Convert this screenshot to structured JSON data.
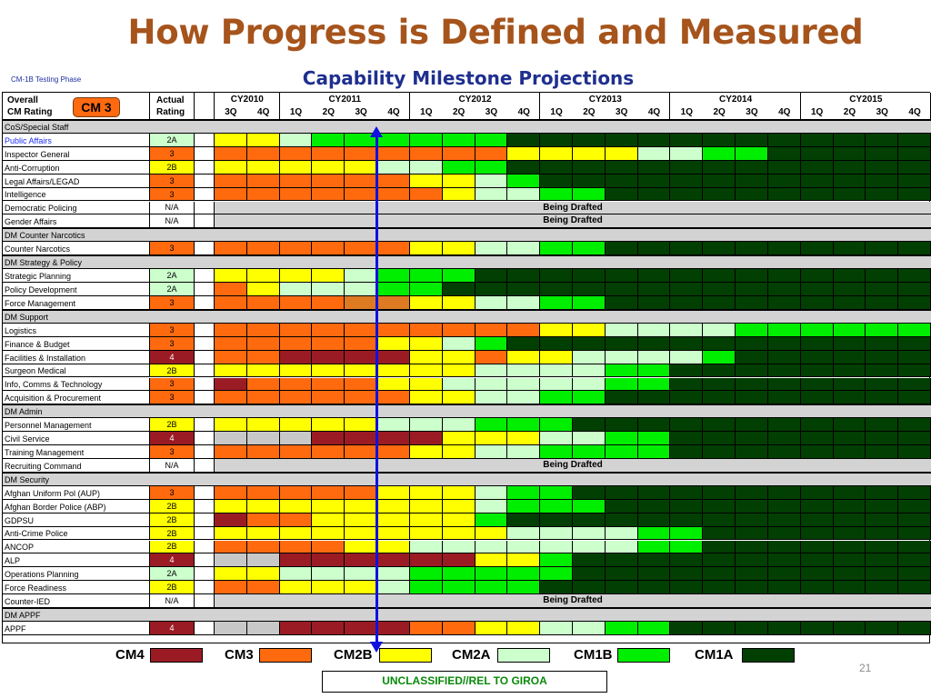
{
  "title": "How Progress is Defined and Measured",
  "subtitle": "Capability Milestone Projections",
  "phase": "CM-1B Testing Phase",
  "header": {
    "overall": "Overall",
    "cm_rating": "CM Rating",
    "actual": "Actual",
    "rating": "Rating",
    "badge": "CM 3",
    "years": [
      "CY2010",
      "CY2011",
      "CY2012",
      "CY2013",
      "CY2014",
      "CY2015"
    ],
    "quarters": [
      "3Q",
      "4Q",
      "1Q",
      "2Q",
      "3Q",
      "4Q",
      "1Q",
      "2Q",
      "3Q",
      "4Q",
      "1Q",
      "2Q",
      "3Q",
      "4Q",
      "1Q",
      "2Q",
      "3Q",
      "4Q",
      "1Q",
      "2Q",
      "3Q",
      "4Q"
    ]
  },
  "colors": {
    "R": "#9b1b24",
    "O": "#ff6a0f",
    "Y": "#ffff00",
    "L": "#ccffcc",
    "G": "#00ee00",
    "D": "#023f02",
    "X": "#c8c8c8",
    "M": "#dd7a22",
    "ratingBg": {
      "2A": "#ccffcc",
      "3": "#ff6a0f",
      "2B": "#ffff00",
      "4": "#9b1b24",
      "N/A": "#ffffff"
    },
    "ratingText": {
      "2A": "#000000",
      "3": "#000000",
      "2B": "#000000",
      "4": "#ffffff",
      "N/A": "#000000"
    }
  },
  "draft_text": "Being Drafted",
  "rows": [
    {
      "type": "section",
      "label": "CoS/Special Staff"
    },
    {
      "type": "row",
      "name": "Public Affairs",
      "rating": "2A",
      "cells": "YYLGGGGGGDDDDDDDDDDDDD",
      "blue": true
    },
    {
      "type": "row",
      "name": "Inspector General",
      "rating": "3",
      "cells": "OOOOOOOOOYYYYLLGGDDDDD"
    },
    {
      "type": "row",
      "name": "Anti-Corruption",
      "rating": "2B",
      "cells": "YYYYYLLGGDDDDDDDDDDDDD"
    },
    {
      "type": "row",
      "name": "Legal Affairs/LEGAD",
      "rating": "3",
      "cells": "OOOOOOYYLGDDDDDDDDDDDD"
    },
    {
      "type": "row",
      "name": "Intelligence",
      "rating": "3",
      "cells": "OOOOOOOYLLGGDDDDDDDDDD"
    },
    {
      "type": "draft",
      "name": "Democratic Policing",
      "rating": "N/A"
    },
    {
      "type": "draft",
      "name": "Gender Affairs",
      "rating": "N/A"
    },
    {
      "type": "section",
      "label": "DM Counter Narcotics"
    },
    {
      "type": "row",
      "name": "Counter Narcotics",
      "rating": "3",
      "cells": "OOOOOOYYLLGGDDDDDDDDDD"
    },
    {
      "type": "section",
      "label": "DM Strategy & Policy"
    },
    {
      "type": "row",
      "name": "Strategic Planning",
      "rating": "2A",
      "cells": "YYYYLGGGDDDDDDDDDDDDDD"
    },
    {
      "type": "row",
      "name": "Policy Development",
      "rating": "2A",
      "cells": "OYLLLGGDDDDDDDDDDDDDDD"
    },
    {
      "type": "row",
      "name": "Force Management",
      "rating": "3",
      "cells": "OOOOMMYYLLGGDDDDDDDDDD"
    },
    {
      "type": "section",
      "label": "DM Support"
    },
    {
      "type": "row",
      "name": "Logistics",
      "rating": "3",
      "cells": "OOOOOOOOOOYYLLLLGGGGGG"
    },
    {
      "type": "row",
      "name": "Finance & Budget",
      "rating": "3",
      "cells": "OOOOOYYLGDDDDDDDDDDDDD"
    },
    {
      "type": "row",
      "name": "Facilities & Installation",
      "rating": "4",
      "cells": "OORRRRYYOYYLLLLGDDDDDD"
    },
    {
      "type": "row",
      "name": "Surgeon Medical",
      "rating": "2B",
      "cells": "YYYYYYYYLLLLGGDDDDDDDD"
    },
    {
      "type": "row",
      "name": "Info, Comms & Technology",
      "rating": "3",
      "cells": "ROOOOYYLLLLLGGDDDDDDDD"
    },
    {
      "type": "row",
      "name": "Acquisition & Procurement",
      "rating": "3",
      "cells": "OOOOOOYYLLGGDDDDDDDDDD"
    },
    {
      "type": "section",
      "label": "DM Admin"
    },
    {
      "type": "row",
      "name": "Personnel Management",
      "rating": "2B",
      "cells": "YYYYYLLLGGGDDDDDDDDDDD"
    },
    {
      "type": "row",
      "name": "Civil Service",
      "rating": "4",
      "cells": "XXXRRRRYYYLLGGDDDDDDDD"
    },
    {
      "type": "row",
      "name": "Training Management",
      "rating": "3",
      "cells": "OOOOOOYYLLGGGGDDDDDDDD"
    },
    {
      "type": "draft",
      "name": "Recruiting Command",
      "rating": "N/A"
    },
    {
      "type": "section",
      "label": "DM Security"
    },
    {
      "type": "row",
      "name": "Afghan Uniform Pol (AUP)",
      "rating": "3",
      "cells": "OOOOOYYYLGGDDDDDDDDDDD"
    },
    {
      "type": "row",
      "name": "Afghan Border Police (ABP)",
      "rating": "2B",
      "cells": "YYYYYYYYLGGGDDDDDDDDDD"
    },
    {
      "type": "row",
      "name": "GDPSU",
      "rating": "2B",
      "cells": "ROOYYYYYGDDDDDDDDDDDDD"
    },
    {
      "type": "row",
      "name": "Anti-Crime Police",
      "rating": "2B",
      "cells": "YYYYYYYYYLLLLGGDDDDDDD"
    },
    {
      "type": "row",
      "name": "ANCOP",
      "rating": "2B",
      "cells": "OOOOYYLLLLLLLGGDDDDDDD"
    },
    {
      "type": "row",
      "name": "ALP",
      "rating": "4",
      "cells": "XXRRRRRRYYGDDDDDDDDDDD"
    },
    {
      "type": "row",
      "name": "Operations Planning",
      "rating": "2A",
      "cells": "YYLLLLGGGGGDDDDDDDDDDD"
    },
    {
      "type": "row",
      "name": "Force Readiness",
      "rating": "2B",
      "cells": "OOYYYLGGGGDDDDDDDDDDDD"
    },
    {
      "type": "draft",
      "name": "Counter-IED",
      "rating": "N/A"
    },
    {
      "type": "section",
      "label": "DM APPF"
    },
    {
      "type": "row",
      "name": "APPF",
      "rating": "4",
      "cells": "XXRRRROOYYLLGGDDDDDDDD"
    }
  ],
  "legend": [
    {
      "label": "CM4",
      "key": "R"
    },
    {
      "label": "CM3",
      "key": "O"
    },
    {
      "label": "CM2B",
      "key": "Y"
    },
    {
      "label": "CM2A",
      "key": "L"
    },
    {
      "label": "CM1B",
      "key": "G"
    },
    {
      "label": "CM1A",
      "key": "D"
    }
  ],
  "page_number": "21",
  "classification": "UNCLASSIFIED//REL TO GIROA"
}
